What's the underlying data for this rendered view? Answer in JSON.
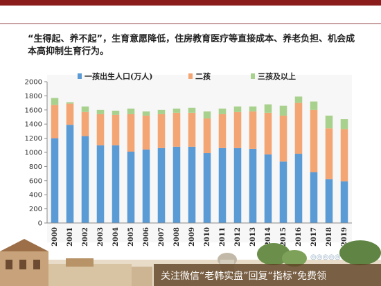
{
  "caption": "“生得起、养不起”，生育意愿降低，住房教育医疗等直接成本、养老负担、机会成本高抑制生育行为。",
  "footer": {
    "banner_text": "关注微信“老韩实盘”回复“指标”免费领"
  },
  "colors": {
    "series1": "#5b9bd5",
    "series2": "#f4a574",
    "series3": "#a9d18e",
    "top_bar": "#8b1c1c"
  },
  "chart_data": {
    "type": "bar",
    "stacked": true,
    "categories": [
      "2000",
      "2001",
      "2002",
      "2003",
      "2004",
      "2005",
      "2006",
      "2007",
      "2008",
      "2009",
      "2010",
      "2011",
      "2012",
      "2013",
      "2014",
      "2015",
      "2016",
      "2017",
      "2018",
      "2019"
    ],
    "series": [
      {
        "name": "一孩出生人口(万人)",
        "color": "#5b9bd5",
        "values": [
          1200,
          1390,
          1230,
          1100,
          1100,
          1010,
          1040,
          1060,
          1080,
          1080,
          990,
          1060,
          1060,
          1050,
          970,
          870,
          980,
          720,
          620,
          590
        ]
      },
      {
        "name": "二孩",
        "color": "#f4a574",
        "values": [
          470,
          300,
          340,
          440,
          430,
          530,
          480,
          480,
          480,
          480,
          490,
          480,
          510,
          530,
          590,
          650,
          720,
          880,
          720,
          740
        ]
      },
      {
        "name": "三孩及以上",
        "color": "#a9d18e",
        "values": [
          100,
          20,
          80,
          60,
          60,
          80,
          60,
          60,
          60,
          70,
          100,
          80,
          80,
          70,
          120,
          140,
          90,
          120,
          180,
          140
        ]
      }
    ],
    "ylim": [
      0,
      2000
    ],
    "yticks": [
      0,
      200,
      400,
      600,
      800,
      1000,
      1200,
      1400,
      1600,
      1800,
      2000
    ],
    "legend_position": "top",
    "grid": false
  }
}
